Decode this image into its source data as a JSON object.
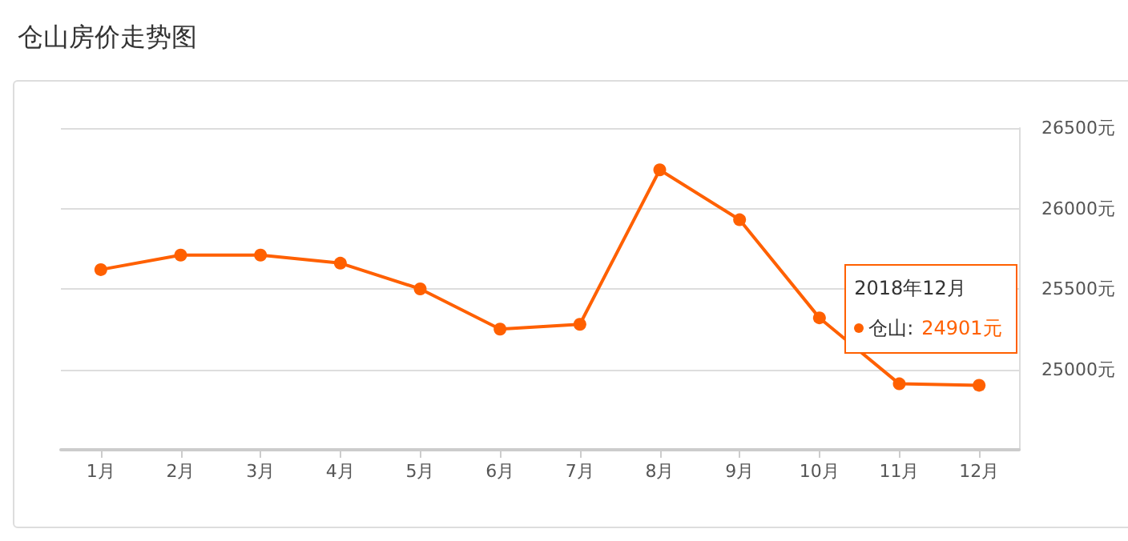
{
  "chart_data": {
    "type": "line",
    "title": "仓山房价走势图",
    "categories": [
      "1月",
      "2月",
      "3月",
      "4月",
      "5月",
      "6月",
      "7月",
      "8月",
      "9月",
      "10月",
      "11月",
      "12月"
    ],
    "series": [
      {
        "color": "#ff6000",
        "values": [
          25620,
          25710,
          25710,
          25660,
          25500,
          25250,
          25280,
          26240,
          25930,
          25320,
          24910,
          24901
        ]
      }
    ],
    "ylim": [
      24500,
      26500
    ],
    "yticks": [
      {
        "value": 24500,
        "label": null
      },
      {
        "value": 25000,
        "label": "25000元"
      },
      {
        "value": 25500,
        "label": "25500元"
      },
      {
        "value": 26000,
        "label": "26000元"
      },
      {
        "value": 26500,
        "label": "26500元"
      }
    ],
    "grid": "y",
    "marker": "circle",
    "line_style": "solid",
    "annotations": [
      "2018年12月",
      "仓山:",
      "24901元"
    ]
  }
}
